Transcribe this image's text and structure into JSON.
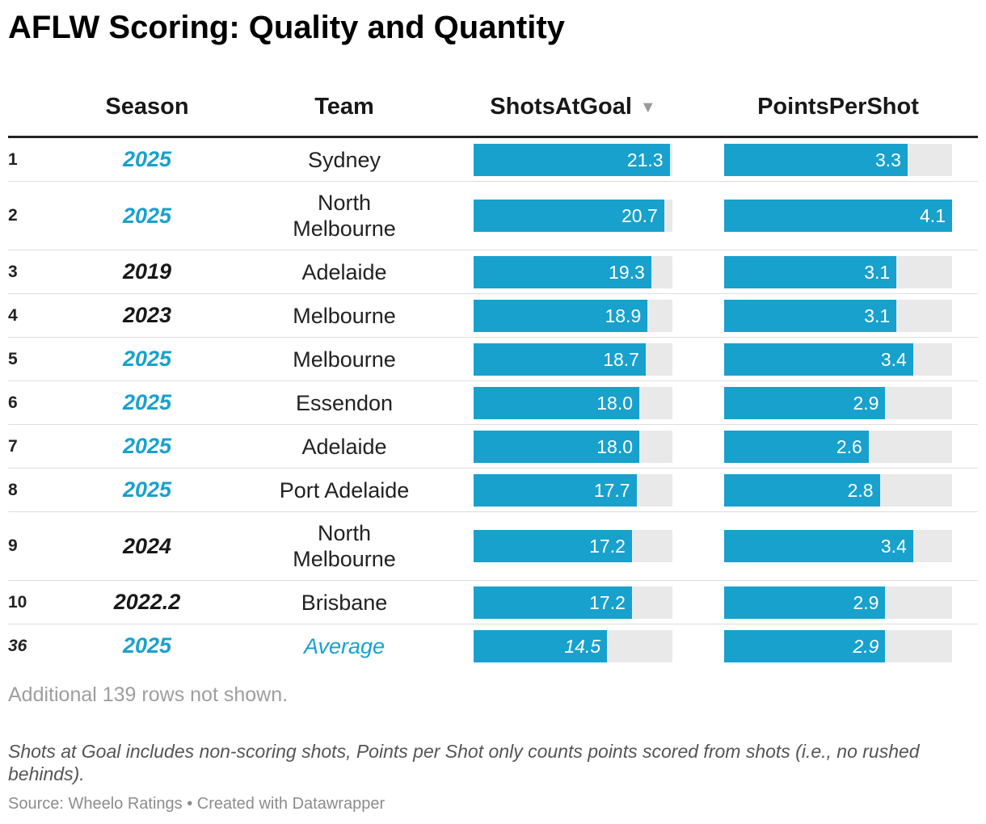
{
  "title": "AFLW Scoring: Quality and Quantity",
  "columns": {
    "season": "Season",
    "team": "Team",
    "shots": "ShotsAtGoal",
    "shots_sort_icon": "sort-down-arrow-icon",
    "points": "PointsPerShot"
  },
  "colors": {
    "accent": "#18a1cd",
    "bar_track": "#e9e9e9",
    "default_text": "#181818"
  },
  "chart_data": {
    "type": "table",
    "scales": {
      "shots_max": 21.6,
      "points_max": 4.1
    },
    "rows": [
      {
        "rank": "1",
        "season": "2025",
        "season_highlight": true,
        "team_lines": [
          "Sydney"
        ],
        "team_highlight": false,
        "shots": 21.3,
        "shots_label": "21.3",
        "points": 3.3,
        "points_label": "3.3",
        "italic": false
      },
      {
        "rank": "2",
        "season": "2025",
        "season_highlight": true,
        "team_lines": [
          "North",
          "Melbourne"
        ],
        "team_highlight": false,
        "shots": 20.7,
        "shots_label": "20.7",
        "points": 4.1,
        "points_label": "4.1",
        "italic": false
      },
      {
        "rank": "3",
        "season": "2019",
        "season_highlight": false,
        "team_lines": [
          "Adelaide"
        ],
        "team_highlight": false,
        "shots": 19.3,
        "shots_label": "19.3",
        "points": 3.1,
        "points_label": "3.1",
        "italic": false
      },
      {
        "rank": "4",
        "season": "2023",
        "season_highlight": false,
        "team_lines": [
          "Melbourne"
        ],
        "team_highlight": false,
        "shots": 18.9,
        "shots_label": "18.9",
        "points": 3.1,
        "points_label": "3.1",
        "italic": false
      },
      {
        "rank": "5",
        "season": "2025",
        "season_highlight": true,
        "team_lines": [
          "Melbourne"
        ],
        "team_highlight": false,
        "shots": 18.7,
        "shots_label": "18.7",
        "points": 3.4,
        "points_label": "3.4",
        "italic": false
      },
      {
        "rank": "6",
        "season": "2025",
        "season_highlight": true,
        "team_lines": [
          "Essendon"
        ],
        "team_highlight": false,
        "shots": 18.0,
        "shots_label": "18.0",
        "points": 2.9,
        "points_label": "2.9",
        "italic": false
      },
      {
        "rank": "7",
        "season": "2025",
        "season_highlight": true,
        "team_lines": [
          "Adelaide"
        ],
        "team_highlight": false,
        "shots": 18.0,
        "shots_label": "18.0",
        "points": 2.6,
        "points_label": "2.6",
        "italic": false
      },
      {
        "rank": "8",
        "season": "2025",
        "season_highlight": true,
        "team_lines": [
          "Port Adelaide"
        ],
        "team_highlight": false,
        "shots": 17.7,
        "shots_label": "17.7",
        "points": 2.8,
        "points_label": "2.8",
        "italic": false
      },
      {
        "rank": "9",
        "season": "2024",
        "season_highlight": false,
        "team_lines": [
          "North",
          "Melbourne"
        ],
        "team_highlight": false,
        "shots": 17.2,
        "shots_label": "17.2",
        "points": 3.4,
        "points_label": "3.4",
        "italic": false
      },
      {
        "rank": "10",
        "season": "2022.2",
        "season_highlight": false,
        "team_lines": [
          "Brisbane"
        ],
        "team_highlight": false,
        "shots": 17.2,
        "shots_label": "17.2",
        "points": 2.9,
        "points_label": "2.9",
        "italic": false
      },
      {
        "rank": "36",
        "season": "2025",
        "season_highlight": true,
        "team_lines": [
          "Average"
        ],
        "team_highlight": true,
        "shots": 14.5,
        "shots_label": "14.5",
        "points": 2.9,
        "points_label": "2.9",
        "italic": true
      }
    ]
  },
  "rows_not_shown": "Additional 139 rows not shown.",
  "notes": "Shots at Goal includes non-scoring shots, Points per Shot only counts points scored from shots (i.e., no rushed behinds).",
  "source": "Source: Wheelo Ratings • Created with Datawrapper"
}
